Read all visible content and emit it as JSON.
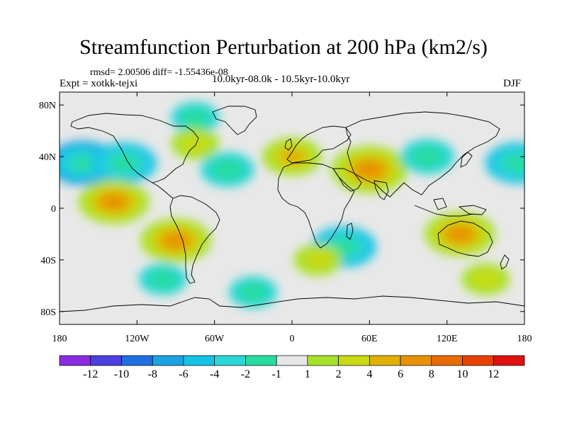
{
  "figure": {
    "title": "Streamfunction Perturbation at 200 hPa (km2/s)",
    "stats": "rmsd= 2.00506 diff= -1.55436e-08",
    "experiment": "Expt = xotkk-tejxi",
    "period": "10.0kyr-08.0k - 10.5kyr-10.0kyr",
    "season": "DJF"
  },
  "map": {
    "projection": "cylindrical-equidistant",
    "lon_range": [
      -180,
      180
    ],
    "lat_range": [
      -90,
      90
    ],
    "background_color": "#e8e8e8",
    "coastline_color": "#000000",
    "lat_ticks": [
      {
        "value": 80,
        "label": "80N"
      },
      {
        "value": 40,
        "label": "40N"
      },
      {
        "value": 0,
        "label": "0"
      },
      {
        "value": -40,
        "label": "40S"
      },
      {
        "value": -80,
        "label": "80S"
      }
    ],
    "lon_ticks": [
      {
        "value": -180,
        "label": "180"
      },
      {
        "value": -120,
        "label": "120W"
      },
      {
        "value": -60,
        "label": "60W"
      },
      {
        "value": 0,
        "label": "0"
      },
      {
        "value": 60,
        "label": "60E"
      },
      {
        "value": 120,
        "label": "120E"
      },
      {
        "value": 180,
        "label": "180"
      }
    ]
  },
  "colorbar": {
    "colors": [
      "#8a2be2",
      "#4b3fe0",
      "#1f6fe0",
      "#1aa3e0",
      "#12c3e6",
      "#2ad6d6",
      "#27dca0",
      "#e6e6e6",
      "#a6e12a",
      "#c8da14",
      "#e0b000",
      "#e89000",
      "#e86a00",
      "#e64000",
      "#e01010"
    ],
    "labels": [
      "-12",
      "-10",
      "-8",
      "-6",
      "-4",
      "-2",
      "-1",
      "1",
      "2",
      "4",
      "6",
      "8",
      "10",
      "12"
    ]
  },
  "chart_data": {
    "type": "heatmap",
    "variable": "Streamfunction Perturbation at 200 hPa",
    "units": "km2/s",
    "levels": [
      -12,
      -10,
      -8,
      -6,
      -4,
      -2,
      -1,
      1,
      2,
      4,
      6,
      8,
      10,
      12
    ],
    "features": [
      {
        "lon": -162,
        "lat": 35,
        "value": -6
      },
      {
        "lon": -130,
        "lat": 35,
        "value": -5
      },
      {
        "lon": -138,
        "lat": 5,
        "value": 6
      },
      {
        "lon": -90,
        "lat": -25,
        "value": 6
      },
      {
        "lon": -50,
        "lat": 30,
        "value": -3
      },
      {
        "lon": -75,
        "lat": 70,
        "value": -2
      },
      {
        "lon": -100,
        "lat": -55,
        "value": -2
      },
      {
        "lon": -75,
        "lat": 50,
        "value": 2
      },
      {
        "lon": 0,
        "lat": 40,
        "value": 4
      },
      {
        "lon": 60,
        "lat": 30,
        "value": 7
      },
      {
        "lon": 40,
        "lat": -30,
        "value": -5
      },
      {
        "lon": 105,
        "lat": 40,
        "value": -3
      },
      {
        "lon": 130,
        "lat": -20,
        "value": 6
      },
      {
        "lon": 175,
        "lat": 35,
        "value": -5
      },
      {
        "lon": 150,
        "lat": -55,
        "value": 2
      },
      {
        "lon": 20,
        "lat": -40,
        "value": 2
      },
      {
        "lon": -30,
        "lat": -65,
        "value": -2
      }
    ]
  }
}
